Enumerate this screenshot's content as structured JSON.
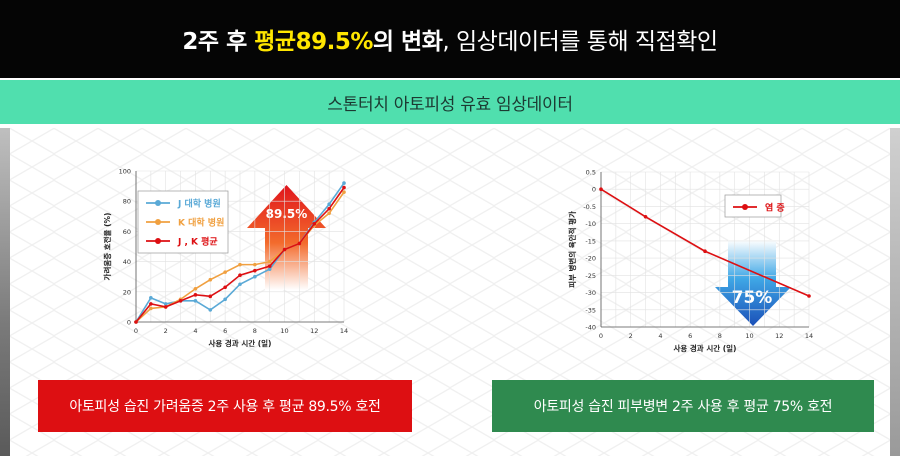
{
  "header": {
    "title_a": "2주 후 ",
    "title_b": "평균89.5%",
    "title_c": "의 변화",
    "title_d": ", 임상데이터를 통해 직접확인"
  },
  "subheader": {
    "title": "스톤터치 아토피성 유효 임상데이터"
  },
  "colors": {
    "accent": "#50dfae",
    "red": "#dd0f12",
    "green": "#2f8a4f",
    "blue_line": "#5aa9d6",
    "orange_line": "#f0a040"
  },
  "captions": {
    "left": "아토피성 습진 가려움증 2주 사용 후 평균 89.5% 호전",
    "right": "아토피성 습진 피부병변 2주 사용 후 평균 75% 호전"
  },
  "chart_data": [
    {
      "type": "line",
      "xlabel": "사용 경과 시간 (일)",
      "ylabel": "가려움증 호전율 (%)",
      "xlim": [
        0,
        14
      ],
      "ylim": [
        0,
        100
      ],
      "xticks": [
        "0",
        "2",
        "4",
        "6",
        "8",
        "10",
        "12",
        "14"
      ],
      "yticks": [
        "0",
        "20",
        "40",
        "60",
        "80",
        "100"
      ],
      "legend_position": "top-left",
      "annotation": "89.5%",
      "series": [
        {
          "name": "J 대학 병원",
          "color": "#5aa9d6",
          "x": [
            0,
            1,
            2,
            3,
            4,
            5,
            6,
            7,
            8,
            9,
            10,
            11,
            12,
            13,
            14
          ],
          "y": [
            0,
            16,
            12,
            14,
            14,
            8,
            15,
            25,
            30,
            35,
            48,
            52,
            66,
            78,
            92
          ]
        },
        {
          "name": "K 대학 병원",
          "color": "#f0a040",
          "x": [
            0,
            1,
            2,
            3,
            4,
            5,
            6,
            7,
            8,
            9,
            10,
            11,
            12,
            13,
            14
          ],
          "y": [
            0,
            9,
            10,
            15,
            22,
            28,
            33,
            38,
            38,
            40,
            48,
            52,
            64,
            72,
            86
          ]
        },
        {
          "name": "J , K 평균",
          "color": "#dd0f12",
          "x": [
            0,
            1,
            2,
            3,
            4,
            5,
            6,
            7,
            8,
            9,
            10,
            11,
            12,
            13,
            14
          ],
          "y": [
            0,
            12,
            10,
            14,
            18,
            17,
            23,
            31,
            34,
            37,
            48,
            52,
            65,
            75,
            89
          ]
        }
      ]
    },
    {
      "type": "line",
      "xlabel": "사용 경과 시간 (일)",
      "ylabel": "피부 병변의 육안적 평가",
      "xlim": [
        0,
        14
      ],
      "ylim": [
        -40,
        5
      ],
      "xticks": [
        "0",
        "2",
        "4",
        "6",
        "8",
        "10",
        "12",
        "14"
      ],
      "yticks": [
        "0.5",
        "0",
        "-0.5",
        "-10",
        "-15",
        "-20",
        "-25",
        "-30",
        "-35",
        "-40"
      ],
      "legend_position": "top-right",
      "annotation": "75%",
      "series": [
        {
          "name": "염 증",
          "color": "#dd0f12",
          "x": [
            0,
            3,
            7,
            14
          ],
          "y": [
            0,
            -8,
            -18,
            -31
          ]
        }
      ]
    }
  ]
}
